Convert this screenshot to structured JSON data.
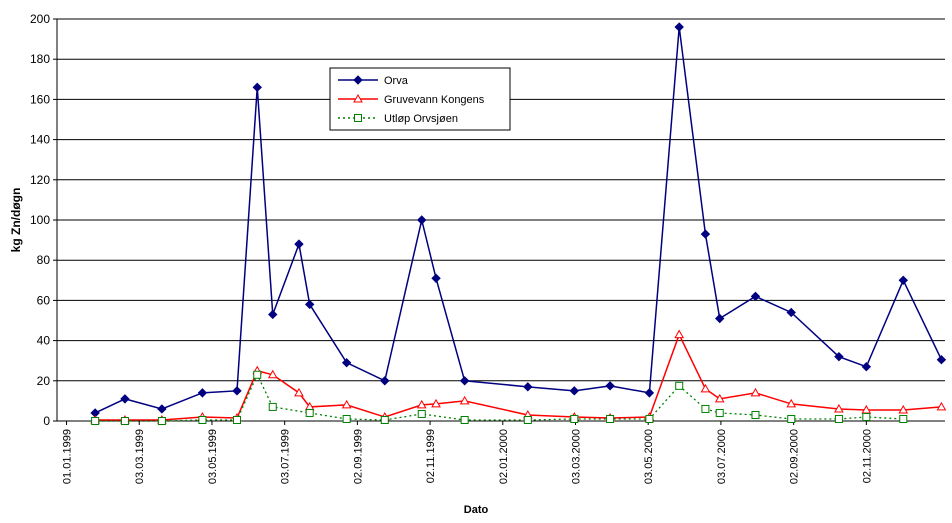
{
  "chart_data": {
    "type": "line",
    "x_label": "Dato",
    "y_label": "kg Zn/døgn",
    "x": [
      "25.01.1999",
      "19.02.1999",
      "22.03.1999",
      "25.04.1999",
      "24.05.1999",
      "10.06.1999",
      "23.06.1999",
      "15.07.1999",
      "24.07.1999",
      "24.08.1999",
      "25.09.1999",
      "26.10.1999",
      "07.11.1999",
      "01.12.1999",
      "23.01.2000",
      "02.03.2000",
      "01.04.2000",
      "04.05.2000",
      "29.05.2000",
      "20.06.2000",
      "02.07.2000",
      "01.08.2000",
      "31.08.2000",
      "10.10.2000",
      "02.11.2000",
      "03.12.2000",
      "04.01.2001"
    ],
    "series": [
      {
        "name": "Orva",
        "color": "#000080",
        "marker": "diamond",
        "dash": "solid",
        "values": [
          4,
          11,
          6,
          14,
          15,
          166,
          53,
          88,
          58,
          29,
          20,
          100,
          71,
          20,
          17,
          15,
          17.5,
          14,
          196,
          93,
          51,
          62,
          54,
          32,
          27,
          70,
          30.5
        ]
      },
      {
        "name": "Gruvevann Kongens",
        "color": "#ff0000",
        "marker": "triangle",
        "dash": "solid",
        "values": [
          0.5,
          0.5,
          0.5,
          2,
          1.5,
          25,
          23,
          14,
          7,
          8,
          2,
          8,
          8.5,
          10,
          3,
          2,
          1.5,
          2,
          43,
          16,
          11,
          14,
          8.5,
          6,
          5.5,
          5.5,
          7
        ]
      },
      {
        "name": "Utløp Orvsjøen",
        "color": "#008000",
        "marker": "square",
        "dash": "dotted",
        "x": [
          "25.01.1999",
          "19.02.1999",
          "22.03.1999",
          "25.04.1999",
          "24.05.1999",
          "10.06.1999",
          "23.06.1999",
          "24.07.1999",
          "24.08.1999",
          "25.09.1999",
          "26.10.1999",
          "01.12.1999",
          "23.01.2000",
          "02.03.2000",
          "01.04.2000",
          "04.05.2000",
          "29.05.2000",
          "20.06.2000",
          "02.07.2000",
          "01.08.2000",
          "31.08.2000",
          "10.10.2000",
          "02.11.2000",
          "03.12.2000"
        ],
        "values": [
          0,
          0,
          0,
          0.5,
          0.5,
          23,
          7,
          4,
          1,
          0.5,
          3.5,
          0.5,
          0.5,
          1,
          1,
          1,
          17.5,
          6,
          4,
          3,
          1,
          1,
          2,
          1
        ]
      }
    ],
    "xlim": [
      "24.12.1998",
      "07.01.2001"
    ],
    "xticks": [
      "01.01.1999",
      "03.03.1999",
      "03.05.1999",
      "03.07.1999",
      "02.09.1999",
      "02.11.1999",
      "02.01.2000",
      "03.03.2000",
      "03.05.2000",
      "03.07.2000",
      "02.09.2000",
      "02.11.2000"
    ],
    "ylim": [
      0,
      200
    ],
    "yticks": [
      0,
      20,
      40,
      60,
      80,
      100,
      120,
      140,
      160,
      180,
      200
    ],
    "grid": true,
    "legend": "top-center"
  }
}
